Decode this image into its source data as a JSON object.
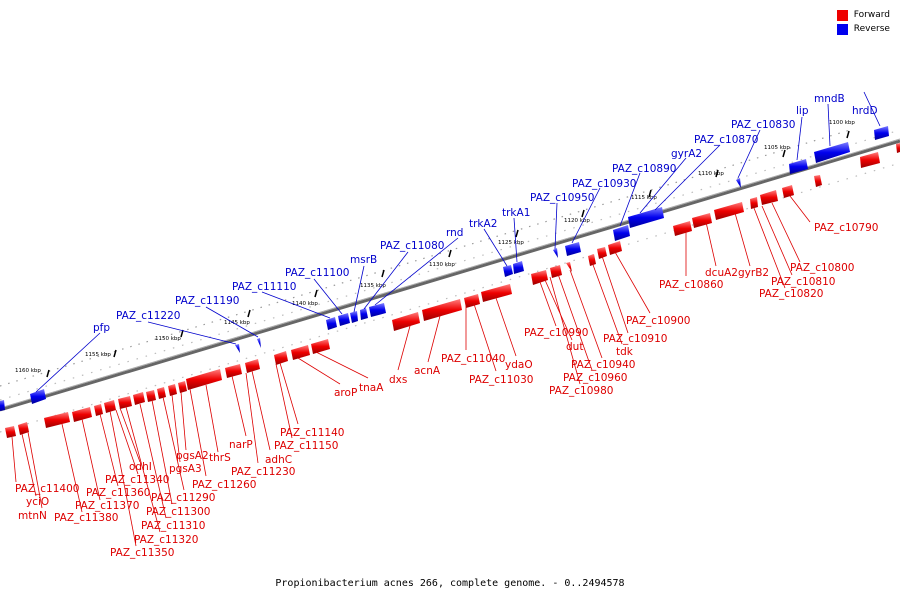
{
  "legend": {
    "forward_label": "Forward",
    "reverse_label": "Reverse",
    "forward_color": "#ee0000",
    "reverse_color": "#0000ee"
  },
  "caption": "Propionibacterium acnes 266, complete genome. - 0..2494578",
  "scale_ticks": [
    "1100 kbp",
    "1105 kbp",
    "1110 kbp",
    "1115 kbp",
    "1120 kbp",
    "1125 kbp",
    "1130 kbp",
    "1135 kbp",
    "1140 kbp",
    "1145 kbp",
    "1150 kbp",
    "1155 kbp",
    "1160 kbp"
  ],
  "forward_labels": [
    "PAZ_c10790",
    "PAZ_c10800",
    "PAZ_c10810",
    "PAZ_c10820",
    "gyrB2",
    "dcuA2",
    "PAZ_c10860",
    "PAZ_c10900",
    "PAZ_c10910",
    "tdk",
    "PAZ_c10940",
    "PAZ_c10960",
    "PAZ_c10980",
    "dut",
    "PAZ_c10990",
    "ydaO",
    "PAZ_c11030",
    "PAZ_c11040",
    "acnA",
    "dxs",
    "tnaA",
    "aroP",
    "PAZ_c11140",
    "PAZ_c11150",
    "adhC",
    "PAZ_c11230",
    "narP",
    "thrS",
    "PAZ_c11260",
    "pgsA2",
    "pgsA3",
    "PAZ_c11290",
    "PAZ_c11300",
    "PAZ_c11310",
    "PAZ_c11320",
    "PAZ_c11350",
    "odhI",
    "PAZ_c11340",
    "PAZ_c11360",
    "PAZ_c11370",
    "PAZ_c11380",
    "PAZ_c11400",
    "yciO",
    "mtnN"
  ],
  "reverse_labels": [
    "hrdD",
    "mndB",
    "lip",
    "PAZ_c10830",
    "PAZ_c10870",
    "gyrA2",
    "PAZ_c10890",
    "PAZ_c10930",
    "PAZ_c10950",
    "trkA1",
    "trkA2",
    "rnd",
    "PAZ_c11080",
    "msrB",
    "PAZ_c11100",
    "PAZ_c11110",
    "PAZ_c11190",
    "PAZ_c11220",
    "pfp"
  ]
}
